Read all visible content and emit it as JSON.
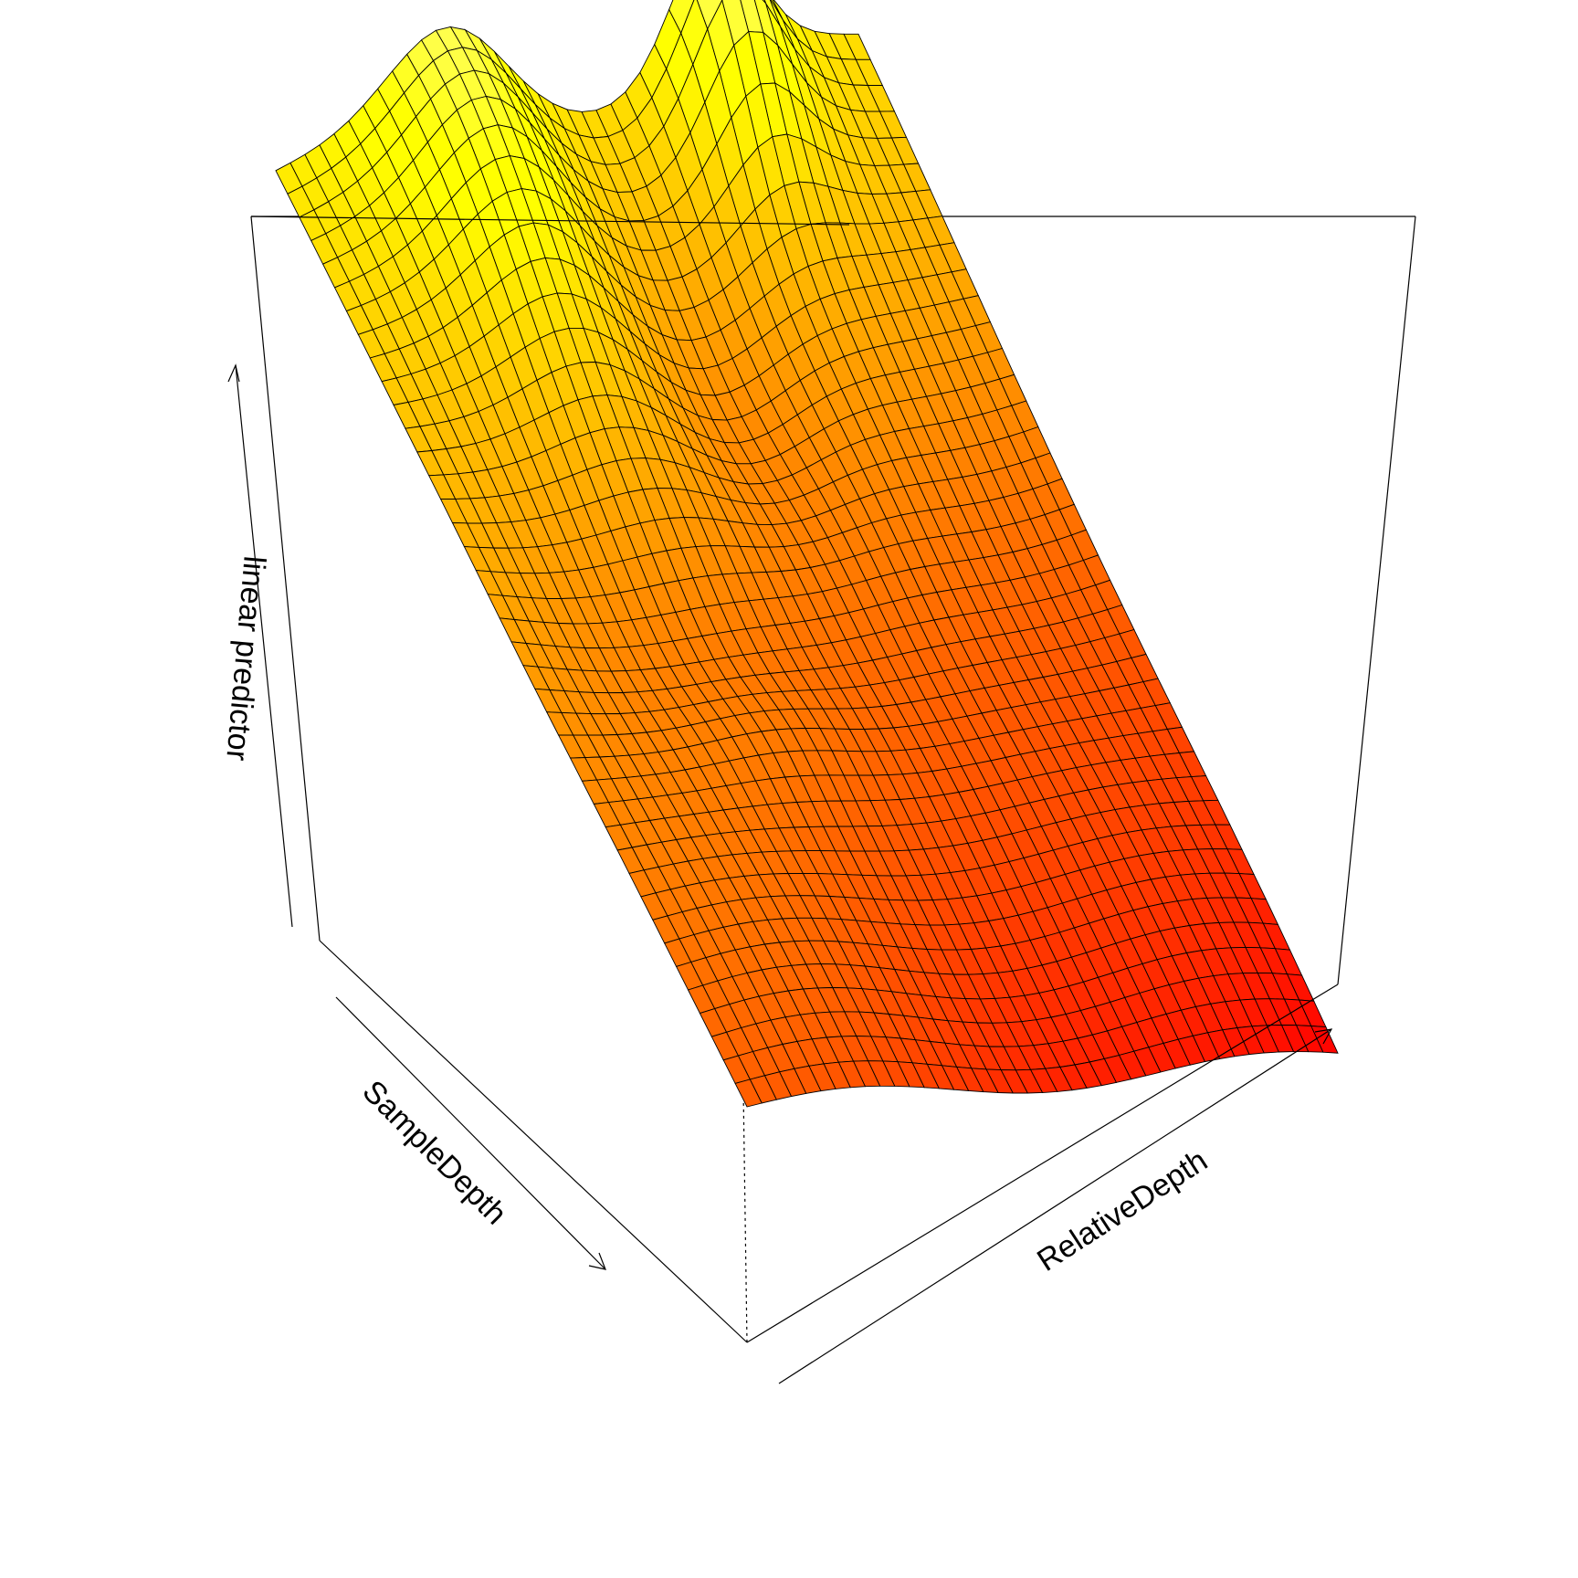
{
  "chart_data": {
    "type": "surface3d",
    "title": "",
    "xlabel": "RelativeDepth",
    "ylabel": "SampleDepth",
    "zlabel": "linear predictor",
    "view": "perspective box, viewed from the low-RelativeDepth / high-SampleDepth corner",
    "colormap": {
      "name": "heat",
      "low": "#ff0000",
      "mid": "#ff8000",
      "high": "#ffff00",
      "top": "#ffff80"
    },
    "grid": {
      "rows": 40,
      "cols": 40
    },
    "surface_features": [
      "broad high ridge at low SampleDepth",
      "sharp peak near mid RelativeDepth at lowest SampleDepth",
      "valley across the middle of the surface",
      "surface descends toward high RelativeDepth and high SampleDepth"
    ],
    "tick_labels": "none shown"
  }
}
